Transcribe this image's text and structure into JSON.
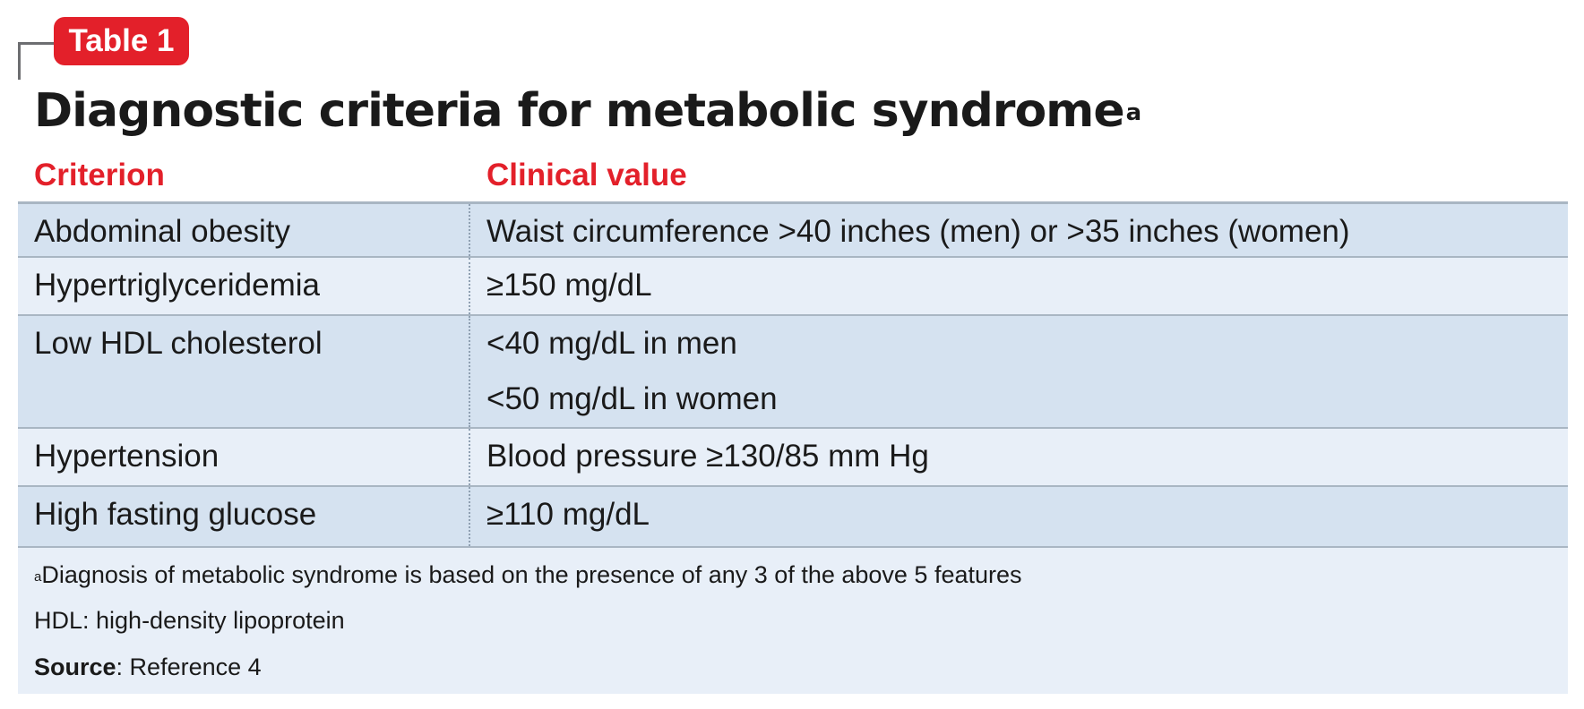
{
  "tag": {
    "label": "Table 1"
  },
  "title": {
    "text": "Diagnostic criteria for metabolic syndrome",
    "superscript": "a"
  },
  "columns": [
    "Criterion",
    "Clinical value"
  ],
  "rows": [
    {
      "criterion": "Abdominal obesity",
      "values": [
        "Waist circumference >40 inches (men) or >35 inches (women)"
      ]
    },
    {
      "criterion": "Hypertriglyceridemia",
      "values": [
        "≥150 mg/dL"
      ]
    },
    {
      "criterion": "Low HDL cholesterol",
      "values": [
        "<40 mg/dL in men",
        "<50 mg/dL in women"
      ]
    },
    {
      "criterion": "Hypertension",
      "values": [
        "Blood pressure ≥130/85 mm Hg"
      ]
    },
    {
      "criterion": "High fasting glucose",
      "values": [
        "≥110 mg/dL"
      ]
    }
  ],
  "footnotes": {
    "a_marker": "a",
    "a_text": "Diagnosis of metabolic syndrome is based on the presence of any 3 of the above 5 features",
    "abbreviation": "HDL: high-density lipoprotein",
    "source_label": "Source",
    "source_text": ": Reference 4"
  },
  "colors": {
    "accent": "#e3202a",
    "row_dark": "#d5e2f0",
    "row_light": "#e8eff8",
    "rule": "#a9b6c3"
  }
}
